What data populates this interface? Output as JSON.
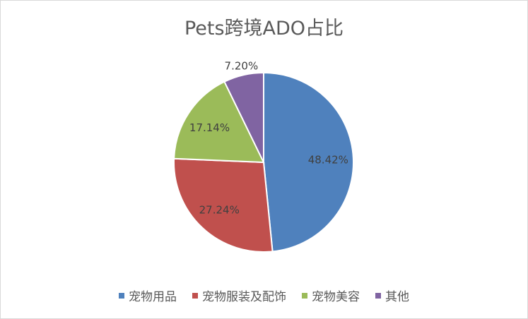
{
  "chart_data": {
    "type": "pie",
    "title": "Pets跨境ADO占比",
    "categories": [
      "宠物用品",
      "宠物服装及配饰",
      "宠物美容",
      "其他"
    ],
    "values": [
      48.42,
      27.24,
      17.14,
      7.2
    ],
    "labels": [
      "48.42%",
      "27.24%",
      "17.14%",
      "7.20%"
    ],
    "colors": [
      "#4f81bd",
      "#c0504d",
      "#9bbb59",
      "#8064a2"
    ],
    "legend_position": "bottom",
    "start_angle_deg": 0,
    "direction": "clockwise"
  }
}
